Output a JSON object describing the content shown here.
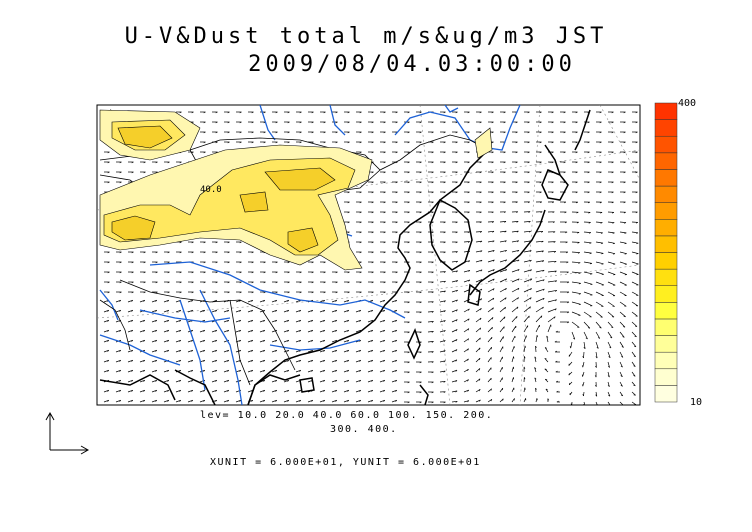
{
  "title_line1": "U-V&Dust total m/s&ug/m3 JST",
  "title_line2": "2009/08/04.03:00:00",
  "contour_levels_line1": "lev= 10.0 20.0 40.0 60.0 100. 150. 200.",
  "contour_levels_line2": "300. 400.",
  "contour_inline_label": "40.0",
  "vector_units": "XUNIT = 6.000E+01, YUNIT = 6.000E+01",
  "colorbar": {
    "max_label": "400",
    "min_label": "10",
    "colors": [
      "#ffffe0",
      "#ffffd0",
      "#ffffb8",
      "#ffff99",
      "#ffff70",
      "#ffff40",
      "#ffef20",
      "#ffe010",
      "#ffd000",
      "#ffbf00",
      "#ffae00",
      "#ff9c00",
      "#ff8a00",
      "#ff7800",
      "#ff6600",
      "#ff5400",
      "#ff4400",
      "#ff3300"
    ]
  },
  "colors": {
    "coast": "#000000",
    "river": "#1e62d6",
    "dust_low": "#fff7b0",
    "dust_mid": "#ffe860",
    "dust_high": "#f5cf2a",
    "grid": "#888888"
  }
}
